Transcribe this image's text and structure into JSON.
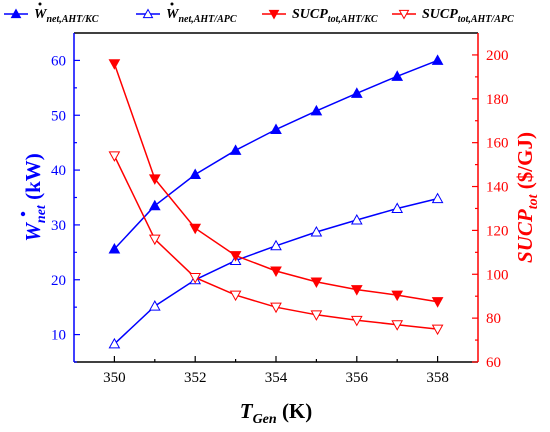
{
  "chart_data": {
    "type": "line",
    "x": [
      350,
      351,
      352,
      353,
      354,
      355,
      356,
      357,
      358
    ],
    "xlim": [
      349,
      359
    ],
    "xticks": [
      350,
      352,
      354,
      356,
      358
    ],
    "xlabel": {
      "main": "T",
      "sub": "Gen",
      "unit": " (K)"
    },
    "ylim_left": [
      5,
      65
    ],
    "yticks_left": [
      10,
      20,
      30,
      40,
      50,
      60
    ],
    "ylabel_left": {
      "main": "W",
      "sub": "net",
      "unit": " (kW)"
    },
    "ylim_right": [
      60,
      210
    ],
    "yticks_right": [
      60,
      80,
      100,
      120,
      140,
      160,
      180,
      200
    ],
    "ylabel_right": {
      "main": "SUCP",
      "sub": "tot",
      "unit": " ($/GJ)"
    },
    "legend_position": "top",
    "series": [
      {
        "name": "W_net,AHT/KC",
        "label_main": "W",
        "label_sub": "net,AHT/KC",
        "dot": true,
        "axis": "left",
        "color": "#0000ff",
        "marker": "triangle-up-filled",
        "values": [
          25.6,
          33.5,
          39.2,
          43.6,
          47.4,
          50.8,
          54.0,
          57.1,
          60.0
        ]
      },
      {
        "name": "W_net,AHT/APC",
        "label_main": "W",
        "label_sub": "net,AHT/APC",
        "dot": true,
        "axis": "left",
        "color": "#0000ff",
        "marker": "triangle-up-open",
        "values": [
          8.3,
          15.2,
          20.0,
          23.5,
          26.2,
          28.7,
          30.9,
          33.0,
          34.8
        ]
      },
      {
        "name": "SUCP_tot,AHT/KC",
        "label_main": "SUCP",
        "label_sub": "tot,AHT/KC",
        "dot": false,
        "axis": "right",
        "color": "#ff0000",
        "marker": "triangle-down-filled",
        "values": [
          196.0,
          143.5,
          121.0,
          108.5,
          101.5,
          96.5,
          93.0,
          90.5,
          87.5
        ]
      },
      {
        "name": "SUCP_tot,AHT/APC",
        "label_main": "SUCP",
        "label_sub": "tot,AHT/APC",
        "dot": false,
        "axis": "right",
        "color": "#ff0000",
        "marker": "triangle-down-open",
        "values": [
          154.0,
          116.0,
          98.5,
          90.5,
          85.0,
          81.5,
          79.0,
          77.0,
          75.0
        ]
      }
    ]
  }
}
